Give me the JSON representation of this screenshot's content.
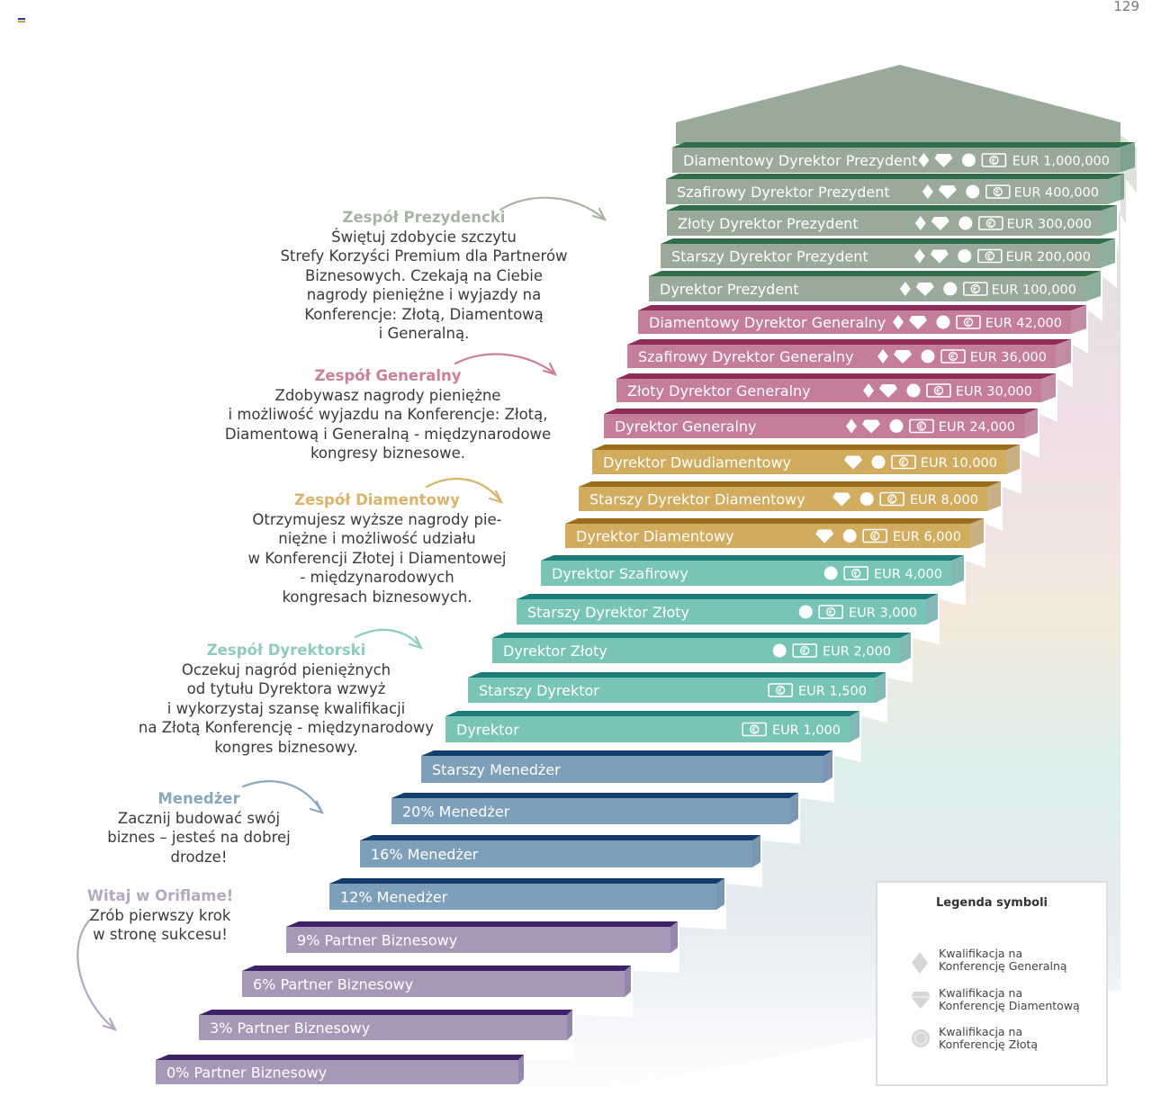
{
  "page_number": "129",
  "colors": {
    "roof": "#9aaa98",
    "president_face": "#9aaa98",
    "president_riser": "#2f6e48",
    "general_face": "#c47d9b",
    "general_riser": "#8e2d59",
    "diamond_face": "#d2ac5e",
    "diamond_riser": "#9b6d1f",
    "director_face": "#78c4b6",
    "director_riser": "#1c7d78",
    "manager_face": "#7d9fb9",
    "manager_riser": "#113e6f",
    "partner_face": "#a898b7",
    "partner_riser": "#3e2268"
  },
  "steps": [
    {
      "label": "0% Partner Biznesowy",
      "group": "partner",
      "icons": [],
      "reward": ""
    },
    {
      "label": "3% Partner Biznesowy",
      "group": "partner",
      "icons": [],
      "reward": ""
    },
    {
      "label": "6% Partner Biznesowy",
      "group": "partner",
      "icons": [],
      "reward": ""
    },
    {
      "label": "9% Partner Biznesowy",
      "group": "partner",
      "icons": [],
      "reward": ""
    },
    {
      "label": "12% Menedżer",
      "group": "manager",
      "icons": [],
      "reward": ""
    },
    {
      "label": "16% Menedżer",
      "group": "manager",
      "icons": [],
      "reward": ""
    },
    {
      "label": "20% Menedżer",
      "group": "manager",
      "icons": [],
      "reward": ""
    },
    {
      "label": "Starszy Menedżer",
      "group": "manager",
      "icons": [],
      "reward": ""
    },
    {
      "label": "Dyrektor",
      "group": "director",
      "icons": [
        "cash"
      ],
      "reward": "EUR 1,000"
    },
    {
      "label": "Starszy Dyrektor",
      "group": "director",
      "icons": [
        "cash"
      ],
      "reward": "EUR 1,500"
    },
    {
      "label": "Dyrektor Złoty",
      "group": "director",
      "icons": [
        "gold",
        "cash"
      ],
      "reward": "EUR 2,000"
    },
    {
      "label": "Starszy Dyrektor Złoty",
      "group": "director",
      "icons": [
        "gold",
        "cash"
      ],
      "reward": "EUR 3,000"
    },
    {
      "label": "Dyrektor Szafirowy",
      "group": "director",
      "icons": [
        "gold",
        "cash"
      ],
      "reward": "EUR 4,000"
    },
    {
      "label": "Dyrektor Diamentowy",
      "group": "diamond",
      "icons": [
        "diamond",
        "gold",
        "cash"
      ],
      "reward": "EUR 6,000"
    },
    {
      "label": "Starszy Dyrektor Diamentowy",
      "group": "diamond",
      "icons": [
        "diamond",
        "gold",
        "cash"
      ],
      "reward": "EUR 8,000"
    },
    {
      "label": "Dyrektor Dwudiamentowy",
      "group": "diamond",
      "icons": [
        "diamond",
        "gold",
        "cash"
      ],
      "reward": "EUR 10,000"
    },
    {
      "label": "Dyrektor Generalny",
      "group": "general",
      "icons": [
        "general",
        "diamond",
        "gold",
        "cash"
      ],
      "reward": "EUR 24,000"
    },
    {
      "label": "Złoty Dyrektor Generalny",
      "group": "general",
      "icons": [
        "general",
        "diamond",
        "gold",
        "cash"
      ],
      "reward": "EUR 30,000"
    },
    {
      "label": "Szafirowy Dyrektor Generalny",
      "group": "general",
      "icons": [
        "general",
        "diamond",
        "gold",
        "cash"
      ],
      "reward": "EUR 36,000"
    },
    {
      "label": "Diamentowy Dyrektor Generalny",
      "group": "general",
      "icons": [
        "general",
        "diamond",
        "gold",
        "cash"
      ],
      "reward": "EUR 42,000"
    },
    {
      "label": "Dyrektor Prezydent",
      "group": "president",
      "icons": [
        "general",
        "diamond",
        "gold",
        "cash"
      ],
      "reward": "EUR 100,000"
    },
    {
      "label": "Starszy Dyrektor Prezydent",
      "group": "president",
      "icons": [
        "general",
        "diamond",
        "gold",
        "cash"
      ],
      "reward": "EUR 200,000"
    },
    {
      "label": "Złoty Dyrektor Prezydent",
      "group": "president",
      "icons": [
        "general",
        "diamond",
        "gold",
        "cash"
      ],
      "reward": "EUR 300,000"
    },
    {
      "label": "Szafirowy Dyrektor Prezydent",
      "group": "president",
      "icons": [
        "general",
        "diamond",
        "gold",
        "cash"
      ],
      "reward": "EUR 400,000"
    },
    {
      "label": "Diamentowy Dyrektor Prezydent",
      "group": "president",
      "icons": [
        "general",
        "diamond",
        "gold",
        "cash"
      ],
      "reward": "EUR 1,000,000"
    }
  ],
  "callouts": {
    "president": {
      "title": "Zespół Prezydencki",
      "title_color": "#a9b2a6",
      "text": "Świętuj zdobycie szczytu\nStrefy Korzyści Premium dla Partnerów\nBiznesowych. Czekają na Ciebie\nnagrody pieniężne i wyjazdy na\nKonferencje: Złotą, Diamentową\ni Generalną."
    },
    "general": {
      "title": "Zespół Generalny",
      "title_color": "#cc7f98",
      "text": "Zdobywasz nagrody pieniężne\ni możliwość wyjazdu na Konferencje: Złotą,\nDiamentową i Generalną - międzynarodowe\nkongresy biznesowe."
    },
    "diamond": {
      "title": "Zespół Diamentowy",
      "title_color": "#d9b46a",
      "text": "Otrzymujesz wyższe nagrody pie-\nniężne i możliwość udziału\nw Konferencji Złotej i Diamentowej\n- międzynarodowych\nkongresach biznesowych."
    },
    "director": {
      "title": "Zespół Dyrektorski",
      "title_color": "#8fcbbf",
      "text": "Oczekuj nagród pieniężnych\nod tytułu Dyrektora  wzwyż\ni wykorzystaj szansę kwalifikacji\nna Złotą Konferencję - międzynarodowy\nkongres biznesowy."
    },
    "manager": {
      "title": "Menedżer",
      "title_color": "#8aa7be",
      "text": "Zacznij budować swój\nbiznes – jesteś na dobrej\ndrodze!"
    },
    "partner": {
      "title": "Witaj w Oriflame!",
      "title_color": "#b2a8bf",
      "text": "Zrób pierwszy krok\nw stronę sukcesu!"
    }
  },
  "legend": {
    "title": "Legenda symboli",
    "items": [
      {
        "icon": "general-diamond-icon",
        "text": "Kwalifikacja na\nKonferencję Generalną"
      },
      {
        "icon": "brilliant-icon",
        "text": "Kwalifikacja na\nKonferencję Diamentową"
      },
      {
        "icon": "gold-circle-icon",
        "text": "Kwalifikacja na\nKonferencję Złotą"
      }
    ]
  }
}
